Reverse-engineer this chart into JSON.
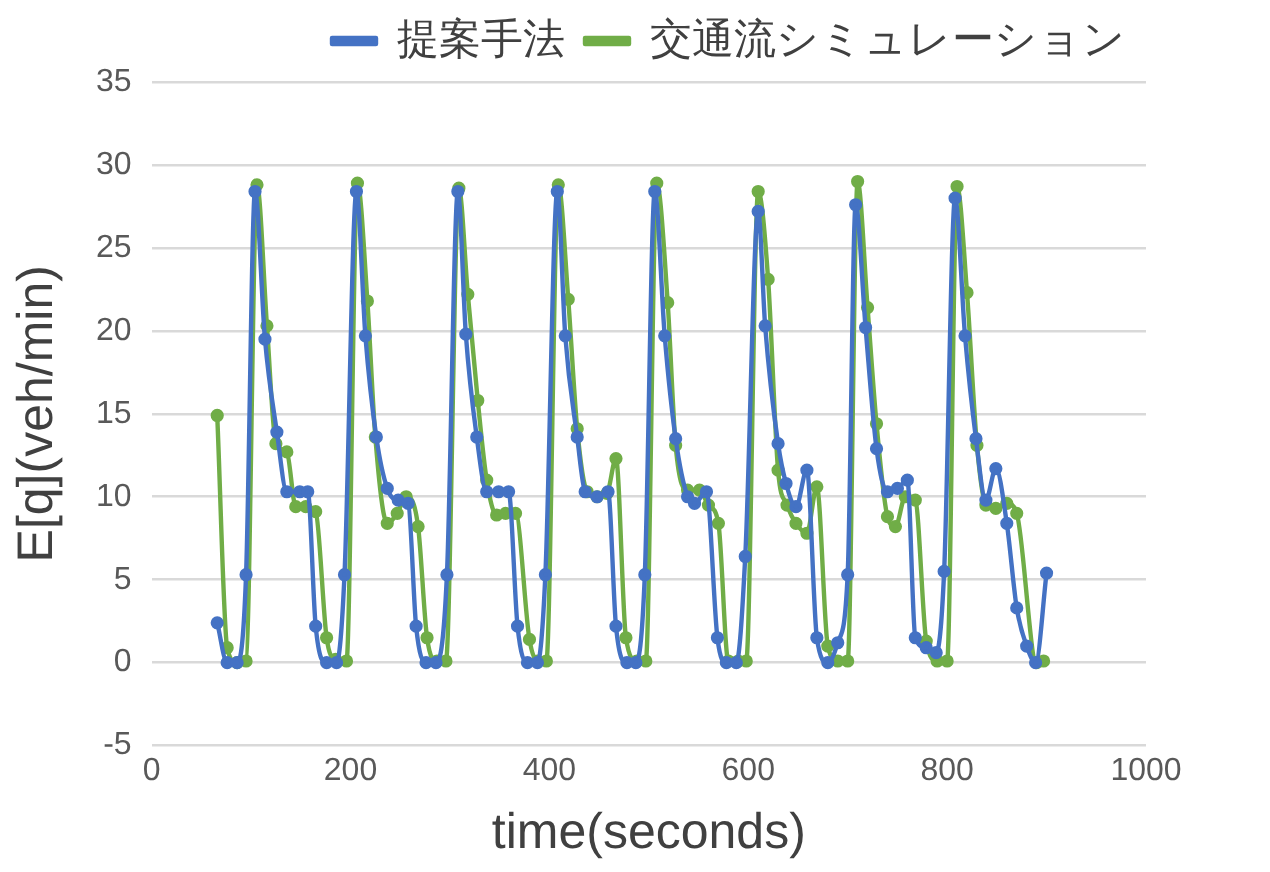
{
  "chart_data": {
    "type": "line",
    "xlabel": "time(seconds)",
    "ylabel": "E[q](veh/min)",
    "xlim": [
      0,
      1000
    ],
    "xticks": [
      0,
      200,
      400,
      600,
      800,
      1000
    ],
    "ylim": [
      -5,
      35
    ],
    "yticks": [
      -5,
      0,
      5,
      10,
      15,
      20,
      25,
      30,
      35
    ],
    "grid": "y",
    "legend": "top right",
    "marker": "circle",
    "line_style": "solid",
    "series": [
      {
        "name": "提案手法",
        "color": "#4472c4",
        "x": [
          66,
          76,
          86,
          95,
          104,
          114,
          126,
          136,
          149,
          157,
          165,
          176,
          186,
          194,
          206,
          215,
          226,
          237,
          248,
          258,
          266,
          276,
          286,
          297,
          308,
          316,
          327,
          337,
          349,
          359,
          368,
          378,
          388,
          396,
          408,
          416,
          428,
          436,
          448,
          459,
          467,
          478,
          487,
          496,
          506,
          516,
          527,
          539,
          546,
          558,
          569,
          578,
          588,
          597,
          610,
          617,
          630,
          638,
          648,
          659,
          669,
          680,
          690,
          700,
          708,
          718,
          729,
          740,
          750,
          760,
          768,
          779,
          789,
          797,
          808,
          818,
          829,
          839,
          849,
          860,
          870,
          880,
          889,
          900
        ],
        "values": [
          2.4,
          0,
          0,
          5.3,
          28.4,
          19.5,
          13.9,
          10.3,
          10.3,
          10.3,
          2.2,
          0,
          0,
          5.3,
          28.4,
          19.7,
          13.6,
          10.5,
          9.8,
          9.6,
          2.2,
          0,
          0,
          5.3,
          28.4,
          19.8,
          13.6,
          10.3,
          10.3,
          10.3,
          2.2,
          0,
          0,
          5.3,
          28.4,
          19.7,
          13.6,
          10.3,
          10,
          10.3,
          2.2,
          0,
          0,
          5.3,
          28.4,
          19.7,
          13.5,
          10,
          9.6,
          10.3,
          1.5,
          0,
          0,
          6.4,
          27.2,
          20.3,
          13.2,
          10.8,
          9.4,
          11.6,
          1.5,
          0,
          1.2,
          5.3,
          27.6,
          20.2,
          12.9,
          10.3,
          10.5,
          11,
          1.5,
          0.9,
          0.6,
          5.5,
          28,
          19.7,
          13.5,
          9.8,
          11.7,
          8.4,
          3.3,
          1,
          0,
          5.4
        ]
      },
      {
        "name": "交通流シミュレーション",
        "color": "#70ad47",
        "x": [
          66,
          76,
          86,
          95,
          106,
          116,
          125,
          136,
          145,
          155,
          165,
          176,
          185,
          196,
          207,
          217,
          225,
          237,
          247,
          256,
          268,
          277,
          287,
          296,
          309,
          318,
          328,
          337,
          347,
          356,
          366,
          380,
          388,
          397,
          409,
          419,
          428,
          438,
          448,
          458,
          467,
          477,
          488,
          497,
          508,
          519,
          527,
          539,
          551,
          560,
          570,
          580,
          590,
          598,
          610,
          620,
          630,
          639,
          648,
          659,
          669,
          680,
          690,
          700,
          710,
          720,
          729,
          740,
          748,
          758,
          768,
          779,
          790,
          800,
          810,
          820,
          830,
          839,
          849,
          860,
          870,
          890,
          897
        ],
        "values": [
          14.9,
          0.9,
          0,
          0.1,
          28.8,
          20.3,
          13.2,
          12.7,
          9.4,
          9.4,
          9.1,
          1.5,
          0.2,
          0.1,
          28.9,
          21.8,
          13.6,
          8.4,
          9,
          10,
          8.2,
          1.5,
          0.1,
          0.1,
          28.6,
          22.2,
          15.8,
          11,
          8.9,
          9,
          9,
          1.4,
          0.1,
          0.1,
          28.8,
          21.9,
          14.1,
          10.3,
          10,
          10.2,
          12.3,
          1.5,
          0.1,
          0.1,
          28.9,
          21.7,
          13.1,
          10.4,
          10.4,
          9.5,
          8.4,
          0.1,
          0.1,
          0.1,
          28.4,
          23.1,
          11.6,
          9.5,
          8.4,
          7.8,
          10.6,
          1,
          0.1,
          0.1,
          29,
          21.4,
          14.4,
          8.8,
          8.2,
          10,
          9.8,
          1.3,
          0.1,
          0.1,
          28.7,
          22.3,
          13.1,
          9.5,
          9.3,
          9.6,
          9,
          0,
          0.1
        ]
      }
    ]
  }
}
